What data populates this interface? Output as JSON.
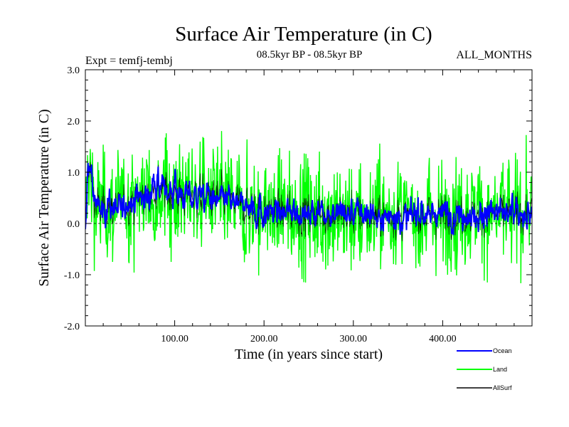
{
  "chart_data": {
    "type": "line",
    "title": "Surface Air Temperature (in C)",
    "subtitle": "08.5kyr BP - 08.5kyr BP",
    "left_label": "Expt = temfj-tembj",
    "right_label": "ALL_MONTHS",
    "xlabel": "Time (in years since start)",
    "ylabel": "Surface Air Temperature (in C)",
    "xlim": [
      0,
      500
    ],
    "ylim": [
      -2.0,
      3.0
    ],
    "x_ticks": [
      100,
      200,
      300,
      400
    ],
    "x_tick_labels": [
      "100.00",
      "200.00",
      "300.00",
      "400.00"
    ],
    "y_ticks": [
      3.0,
      2.0,
      1.0,
      0.0,
      -1.0,
      -2.0
    ],
    "y_tick_labels": [
      "3.0",
      "2.0",
      "1.0",
      "0.0",
      "-1.0",
      "-2.0"
    ],
    "reference_line": 0.0,
    "series": [
      {
        "name": "Land",
        "color": "#00ff00",
        "legend_label": "Land"
      },
      {
        "name": "Ocean",
        "color": "#0000ff",
        "legend_label": "Ocean"
      },
      {
        "name": "AllSurf",
        "color": "#000000",
        "legend_label": "AllSurf"
      }
    ]
  }
}
